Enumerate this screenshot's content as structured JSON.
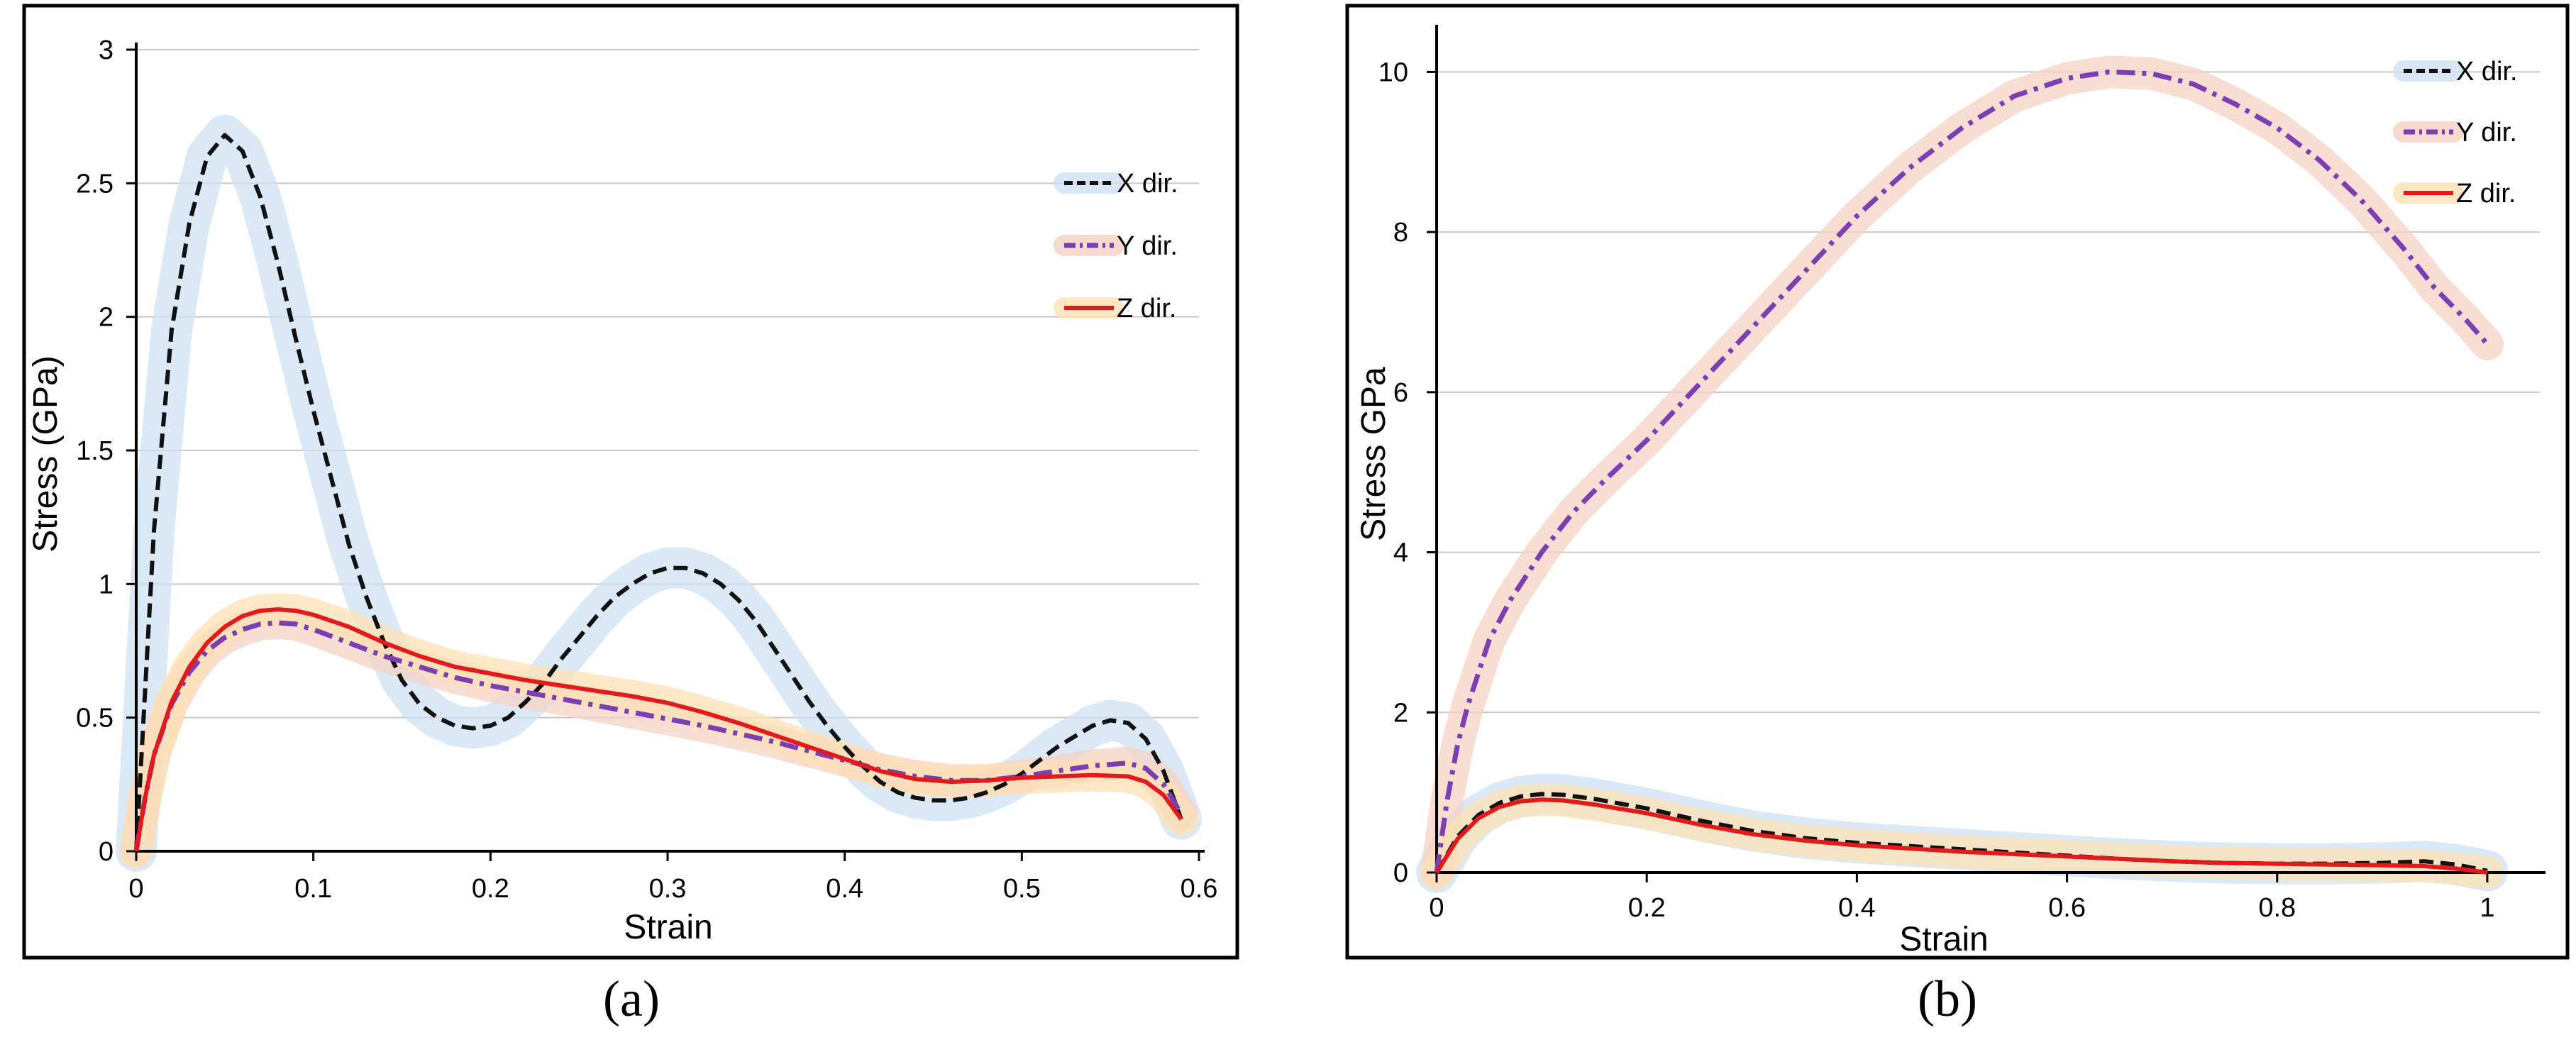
{
  "colors": {
    "x_line": "#111111",
    "x_band": "#cfe1f3",
    "y_line": "#7b3fb3",
    "y_band": "#f6d2c4",
    "z_line": "#e31a1c",
    "z_band": "#fde0b4",
    "grid": "#c8c8c8",
    "frame": "#000000"
  },
  "chart_data": [
    {
      "type": "line",
      "panel": "a",
      "caption": "(a)",
      "xlabel": "Strain",
      "ylabel": "Stress (GPa)",
      "xlim": [
        0,
        0.6
      ],
      "ylim": [
        0,
        3
      ],
      "xticks": [
        0,
        0.1,
        0.2,
        0.3,
        0.4,
        0.5,
        0.6
      ],
      "xtick_labels": [
        "0",
        "0.1",
        "0.2",
        "0.3",
        "0.4",
        "0.5",
        "0.6"
      ],
      "yticks": [
        0,
        0.5,
        1,
        1.5,
        2,
        2.5,
        3
      ],
      "ytick_labels": [
        "0",
        "0.5",
        "1",
        "1.5",
        "2",
        "2.5",
        "3"
      ],
      "grid": "horizontal",
      "legend": "right",
      "series": [
        {
          "name": "X dir.",
          "style": "dashed",
          "x": [
            0,
            0.005,
            0.01,
            0.02,
            0.03,
            0.04,
            0.05,
            0.06,
            0.07,
            0.08,
            0.09,
            0.1,
            0.11,
            0.12,
            0.13,
            0.14,
            0.15,
            0.16,
            0.17,
            0.18,
            0.19,
            0.2,
            0.21,
            0.22,
            0.23,
            0.24,
            0.25,
            0.26,
            0.27,
            0.28,
            0.29,
            0.3,
            0.31,
            0.32,
            0.33,
            0.34,
            0.35,
            0.36,
            0.37,
            0.38,
            0.39,
            0.4,
            0.41,
            0.42,
            0.43,
            0.44,
            0.45,
            0.46,
            0.47,
            0.48,
            0.49,
            0.5,
            0.51,
            0.52,
            0.53,
            0.54,
            0.55,
            0.56,
            0.57,
            0.58,
            0.59
          ],
          "y": [
            0,
            0.6,
            1.2,
            1.95,
            2.35,
            2.6,
            2.68,
            2.62,
            2.45,
            2.2,
            1.92,
            1.65,
            1.4,
            1.15,
            0.95,
            0.78,
            0.64,
            0.55,
            0.5,
            0.47,
            0.46,
            0.47,
            0.5,
            0.56,
            0.63,
            0.72,
            0.8,
            0.88,
            0.95,
            1.0,
            1.04,
            1.06,
            1.06,
            1.04,
            1.0,
            0.94,
            0.86,
            0.76,
            0.66,
            0.56,
            0.47,
            0.39,
            0.32,
            0.26,
            0.22,
            0.2,
            0.19,
            0.19,
            0.2,
            0.22,
            0.25,
            0.29,
            0.34,
            0.39,
            0.43,
            0.47,
            0.49,
            0.48,
            0.42,
            0.3,
            0.12
          ]
        },
        {
          "name": "Y dir.",
          "style": "dash-dot",
          "x": [
            0,
            0.005,
            0.01,
            0.02,
            0.03,
            0.04,
            0.05,
            0.06,
            0.07,
            0.08,
            0.09,
            0.1,
            0.12,
            0.14,
            0.16,
            0.18,
            0.2,
            0.22,
            0.24,
            0.26,
            0.28,
            0.3,
            0.32,
            0.34,
            0.36,
            0.38,
            0.4,
            0.42,
            0.44,
            0.46,
            0.48,
            0.5,
            0.52,
            0.54,
            0.56,
            0.57,
            0.58,
            0.59
          ],
          "y": [
            0,
            0.2,
            0.36,
            0.55,
            0.67,
            0.75,
            0.8,
            0.83,
            0.85,
            0.855,
            0.85,
            0.83,
            0.78,
            0.73,
            0.69,
            0.65,
            0.62,
            0.595,
            0.57,
            0.545,
            0.52,
            0.495,
            0.47,
            0.44,
            0.41,
            0.375,
            0.34,
            0.305,
            0.28,
            0.265,
            0.265,
            0.28,
            0.3,
            0.32,
            0.33,
            0.31,
            0.25,
            0.14
          ]
        },
        {
          "name": "Z dir.",
          "style": "solid",
          "x": [
            0,
            0.005,
            0.01,
            0.02,
            0.03,
            0.04,
            0.05,
            0.06,
            0.07,
            0.08,
            0.09,
            0.1,
            0.12,
            0.14,
            0.16,
            0.18,
            0.2,
            0.22,
            0.24,
            0.26,
            0.28,
            0.3,
            0.32,
            0.34,
            0.36,
            0.38,
            0.4,
            0.42,
            0.44,
            0.46,
            0.48,
            0.5,
            0.52,
            0.54,
            0.56,
            0.57,
            0.58,
            0.59
          ],
          "y": [
            0,
            0.2,
            0.36,
            0.56,
            0.69,
            0.78,
            0.84,
            0.88,
            0.9,
            0.905,
            0.9,
            0.885,
            0.84,
            0.78,
            0.73,
            0.69,
            0.665,
            0.64,
            0.62,
            0.6,
            0.58,
            0.555,
            0.52,
            0.48,
            0.435,
            0.39,
            0.345,
            0.3,
            0.27,
            0.26,
            0.265,
            0.275,
            0.28,
            0.285,
            0.28,
            0.26,
            0.21,
            0.12
          ]
        }
      ]
    },
    {
      "type": "line",
      "panel": "b",
      "caption": "(b)",
      "xlabel": "Strain",
      "ylabel": "Stress GPa",
      "xlim": [
        0,
        1.05
      ],
      "ylim": [
        0,
        10.5
      ],
      "xticks": [
        0,
        0.2,
        0.4,
        0.6,
        0.8,
        1
      ],
      "xtick_labels": [
        "0",
        "0.2",
        "0.4",
        "0.6",
        "0.8",
        "1"
      ],
      "yticks": [
        0,
        2,
        4,
        6,
        8,
        10
      ],
      "ytick_labels": [
        "0",
        "2",
        "4",
        "6",
        "8",
        "10"
      ],
      "grid": "horizontal",
      "legend": "top-right",
      "series": [
        {
          "name": "X dir.",
          "style": "dashed",
          "x": [
            0,
            0.02,
            0.04,
            0.06,
            0.08,
            0.1,
            0.12,
            0.15,
            0.2,
            0.25,
            0.3,
            0.35,
            0.4,
            0.45,
            0.5,
            0.55,
            0.6,
            0.65,
            0.7,
            0.75,
            0.8,
            0.85,
            0.9,
            0.94,
            0.97,
            1.0
          ],
          "y": [
            0,
            0.45,
            0.72,
            0.87,
            0.95,
            0.98,
            0.97,
            0.92,
            0.8,
            0.65,
            0.52,
            0.43,
            0.37,
            0.33,
            0.29,
            0.25,
            0.21,
            0.17,
            0.14,
            0.12,
            0.11,
            0.11,
            0.12,
            0.14,
            0.1,
            0.02
          ]
        },
        {
          "name": "Y dir.",
          "style": "dash-dot",
          "x": [
            0,
            0.01,
            0.02,
            0.03,
            0.05,
            0.07,
            0.1,
            0.13,
            0.16,
            0.2,
            0.25,
            0.3,
            0.35,
            0.4,
            0.45,
            0.5,
            0.55,
            0.6,
            0.64,
            0.68,
            0.72,
            0.76,
            0.8,
            0.84,
            0.88,
            0.92,
            0.95,
            0.98,
            1.0
          ],
          "y": [
            0,
            0.9,
            1.6,
            2.1,
            2.9,
            3.4,
            4.0,
            4.5,
            4.9,
            5.4,
            6.1,
            6.8,
            7.5,
            8.2,
            8.8,
            9.3,
            9.7,
            9.92,
            10.0,
            9.98,
            9.85,
            9.6,
            9.3,
            8.9,
            8.4,
            7.8,
            7.3,
            6.9,
            6.6
          ]
        },
        {
          "name": "Z dir.",
          "style": "solid",
          "x": [
            0,
            0.02,
            0.04,
            0.06,
            0.08,
            0.1,
            0.12,
            0.15,
            0.2,
            0.25,
            0.3,
            0.35,
            0.4,
            0.45,
            0.5,
            0.55,
            0.6,
            0.65,
            0.7,
            0.75,
            0.8,
            0.85,
            0.9,
            0.94,
            0.97,
            1.0
          ],
          "y": [
            0,
            0.42,
            0.68,
            0.82,
            0.89,
            0.91,
            0.9,
            0.85,
            0.74,
            0.6,
            0.48,
            0.4,
            0.34,
            0.3,
            0.26,
            0.23,
            0.2,
            0.17,
            0.14,
            0.12,
            0.11,
            0.1,
            0.09,
            0.08,
            0.05,
            0.0
          ]
        }
      ]
    }
  ]
}
